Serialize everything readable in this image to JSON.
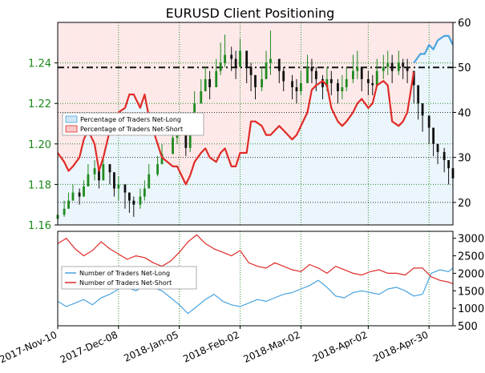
{
  "chart_data": {
    "title": "EURUSD Client Positioning",
    "x_dates": [
      "2017-Nov-10",
      "2017-Dec-08",
      "2018-Jan-05",
      "2018-Feb-02",
      "2018-Mar-02",
      "2018-Apr-02",
      "2018-Apr-30"
    ],
    "x_range": [
      "2017-11-10",
      "2018-05-11"
    ],
    "panels": [
      {
        "type": "candlestick+line",
        "left_axis": {
          "range": [
            1.16,
            1.26
          ],
          "ticks": [
            "1.16",
            "1.18",
            "1.20",
            "1.22",
            "1.24"
          ]
        },
        "right_axis": {
          "range": [
            15,
            60
          ],
          "ticks": [
            "20",
            "30",
            "40",
            "50",
            "60"
          ]
        },
        "reference_line_right": 50,
        "legend": {
          "placement": "left-middle",
          "entries": [
            "Percentage of Traders Net-Long",
            "Percentage of Traders Net-Short"
          ]
        },
        "series": [
          {
            "name": "Percentage of Traders Net-Short",
            "color": "#e02b27",
            "x": [
              "2017-11-10",
              "2017-11-13",
              "2017-11-15",
              "2017-11-17",
              "2017-11-20",
              "2017-11-22",
              "2017-11-24",
              "2017-11-27",
              "2017-11-29",
              "2017-12-01",
              "2017-12-04",
              "2017-12-06",
              "2017-12-08",
              "2017-12-11",
              "2017-12-13",
              "2017-12-15",
              "2017-12-18",
              "2017-12-20",
              "2017-12-22",
              "2017-12-26",
              "2017-12-28",
              "2018-01-02",
              "2018-01-04",
              "2018-01-08",
              "2018-01-10",
              "2018-01-12",
              "2018-01-15",
              "2018-01-17",
              "2018-01-19",
              "2018-01-22",
              "2018-01-24",
              "2018-01-26",
              "2018-01-29",
              "2018-01-31",
              "2018-02-02",
              "2018-02-05",
              "2018-02-07",
              "2018-02-09",
              "2018-02-12",
              "2018-02-14",
              "2018-02-16",
              "2018-02-20",
              "2018-02-22",
              "2018-02-26",
              "2018-02-28",
              "2018-03-02",
              "2018-03-05",
              "2018-03-07",
              "2018-03-09",
              "2018-03-12",
              "2018-03-14",
              "2018-03-16",
              "2018-03-19",
              "2018-03-21",
              "2018-03-23",
              "2018-03-26",
              "2018-03-28",
              "2018-03-30",
              "2018-04-02",
              "2018-04-04",
              "2018-04-06",
              "2018-04-09",
              "2018-04-11",
              "2018-04-13",
              "2018-04-16",
              "2018-04-18",
              "2018-04-20",
              "2018-04-23"
            ],
            "values": [
              31,
              29,
              27,
              28,
              30,
              34,
              36,
              33,
              27,
              30,
              36,
              38,
              40,
              41,
              44,
              44,
              41,
              44,
              39,
              33,
              30,
              28,
              28,
              24,
              26,
              29,
              31,
              32,
              30,
              29,
              31,
              32,
              28,
              28,
              31,
              31,
              38,
              38,
              37,
              35,
              35,
              37,
              36,
              34,
              35,
              37,
              40,
              45,
              46,
              47,
              46,
              41,
              38,
              37,
              38,
              40,
              42,
              43,
              41,
              42,
              46,
              47,
              46,
              38,
              37,
              38,
              40,
              49
            ]
          },
          {
            "name": "Percentage of Traders Net-Long",
            "color": "#4aa3df",
            "x": [
              "2018-04-23",
              "2018-04-26",
              "2018-04-28",
              "2018-04-30",
              "2018-05-02",
              "2018-05-04",
              "2018-05-07",
              "2018-05-09",
              "2018-05-11"
            ],
            "values": [
              51,
              53,
              53,
              55,
              54,
              56,
              57,
              57,
              55
            ]
          }
        ],
        "price_candles": {
          "x": [
            "2017-11-10",
            "2017-11-13",
            "2017-11-15",
            "2017-11-17",
            "2017-11-20",
            "2017-11-22",
            "2017-11-24",
            "2017-11-27",
            "2017-11-29",
            "2017-12-01",
            "2017-12-04",
            "2017-12-06",
            "2017-12-08",
            "2017-12-11",
            "2017-12-13",
            "2017-12-15",
            "2017-12-18",
            "2017-12-20",
            "2017-12-22",
            "2017-12-26",
            "2017-12-28",
            "2018-01-02",
            "2018-01-04",
            "2018-01-08",
            "2018-01-10",
            "2018-01-12",
            "2018-01-15",
            "2018-01-17",
            "2018-01-19",
            "2018-01-22",
            "2018-01-24",
            "2018-01-26",
            "2018-01-29",
            "2018-01-31",
            "2018-02-02",
            "2018-02-05",
            "2018-02-07",
            "2018-02-09",
            "2018-02-12",
            "2018-02-14",
            "2018-02-16",
            "2018-02-20",
            "2018-02-22",
            "2018-02-26",
            "2018-02-28",
            "2018-03-02",
            "2018-03-05",
            "2018-03-07",
            "2018-03-09",
            "2018-03-12",
            "2018-03-14",
            "2018-03-16",
            "2018-03-19",
            "2018-03-21",
            "2018-03-23",
            "2018-03-26",
            "2018-03-28",
            "2018-03-30",
            "2018-04-02",
            "2018-04-04",
            "2018-04-06",
            "2018-04-09",
            "2018-04-11",
            "2018-04-13",
            "2018-04-16",
            "2018-04-18",
            "2018-04-20",
            "2018-04-23",
            "2018-04-25",
            "2018-04-27",
            "2018-04-30",
            "2018-05-02",
            "2018-05-04",
            "2018-05-07",
            "2018-05-09",
            "2018-05-11"
          ],
          "close": [
            1.165,
            1.168,
            1.172,
            1.176,
            1.174,
            1.179,
            1.185,
            1.188,
            1.182,
            1.19,
            1.186,
            1.178,
            1.18,
            1.176,
            1.172,
            1.17,
            1.174,
            1.178,
            1.185,
            1.19,
            1.195,
            1.203,
            1.207,
            1.198,
            1.205,
            1.22,
            1.226,
            1.232,
            1.228,
            1.236,
            1.24,
            1.244,
            1.242,
            1.238,
            1.246,
            1.238,
            1.234,
            1.228,
            1.232,
            1.24,
            1.242,
            1.236,
            1.231,
            1.228,
            1.226,
            1.23,
            1.238,
            1.236,
            1.232,
            1.228,
            1.232,
            1.23,
            1.226,
            1.228,
            1.232,
            1.236,
            1.238,
            1.232,
            1.23,
            1.229,
            1.236,
            1.238,
            1.24,
            1.236,
            1.24,
            1.238,
            1.236,
            1.229,
            1.22,
            1.214,
            1.208,
            1.2,
            1.196,
            1.192,
            1.188,
            1.183
          ],
          "high": [
            1.168,
            1.172,
            1.176,
            1.18,
            1.178,
            1.182,
            1.19,
            1.192,
            1.188,
            1.194,
            1.19,
            1.184,
            1.184,
            1.18,
            1.176,
            1.174,
            1.178,
            1.182,
            1.19,
            1.194,
            1.2,
            1.208,
            1.212,
            1.206,
            1.21,
            1.226,
            1.232,
            1.238,
            1.236,
            1.242,
            1.25,
            1.254,
            1.248,
            1.246,
            1.252,
            1.246,
            1.24,
            1.234,
            1.238,
            1.246,
            1.256,
            1.242,
            1.238,
            1.234,
            1.232,
            1.236,
            1.244,
            1.242,
            1.238,
            1.234,
            1.238,
            1.236,
            1.232,
            1.234,
            1.238,
            1.244,
            1.246,
            1.238,
            1.236,
            1.234,
            1.242,
            1.244,
            1.246,
            1.244,
            1.246,
            1.242,
            1.242,
            1.236,
            1.226,
            1.22,
            1.214,
            1.206,
            1.2,
            1.198,
            1.192,
            1.188
          ],
          "low": [
            1.162,
            1.164,
            1.168,
            1.172,
            1.17,
            1.174,
            1.18,
            1.182,
            1.178,
            1.184,
            1.18,
            1.174,
            1.172,
            1.168,
            1.166,
            1.164,
            1.168,
            1.172,
            1.18,
            1.184,
            1.19,
            1.196,
            1.2,
            1.194,
            1.196,
            1.212,
            1.22,
            1.226,
            1.222,
            1.228,
            1.234,
            1.238,
            1.236,
            1.232,
            1.238,
            1.23,
            1.226,
            1.222,
            1.226,
            1.232,
            1.234,
            1.23,
            1.226,
            1.222,
            1.22,
            1.224,
            1.232,
            1.23,
            1.226,
            1.222,
            1.226,
            1.224,
            1.22,
            1.222,
            1.226,
            1.23,
            1.232,
            1.226,
            1.224,
            1.224,
            1.23,
            1.232,
            1.234,
            1.23,
            1.234,
            1.232,
            1.23,
            1.22,
            1.212,
            1.206,
            1.2,
            1.194,
            1.19,
            1.186,
            1.18,
            1.176
          ]
        }
      },
      {
        "type": "line",
        "right_axis": {
          "range": [
            500,
            3200
          ],
          "ticks": [
            "500",
            "1000",
            "1500",
            "2000",
            "2500",
            "3000"
          ]
        },
        "legend": {
          "placement": "left-middle",
          "entries": [
            "Number of Traders Net-Long",
            "Number of Traders Net-Short"
          ]
        },
        "series": [
          {
            "name": "Number of Traders Net-Long",
            "color": "#4aa3df",
            "x": [
              "2017-11-10",
              "2017-11-14",
              "2017-11-18",
              "2017-11-22",
              "2017-11-26",
              "2017-11-30",
              "2017-12-04",
              "2017-12-08",
              "2017-12-12",
              "2017-12-16",
              "2017-12-20",
              "2017-12-24",
              "2017-12-28",
              "2018-01-01",
              "2018-01-05",
              "2018-01-09",
              "2018-01-13",
              "2018-01-17",
              "2018-01-21",
              "2018-01-25",
              "2018-01-29",
              "2018-02-02",
              "2018-02-06",
              "2018-02-10",
              "2018-02-14",
              "2018-02-18",
              "2018-02-22",
              "2018-02-26",
              "2018-03-02",
              "2018-03-06",
              "2018-03-10",
              "2018-03-14",
              "2018-03-18",
              "2018-03-22",
              "2018-03-26",
              "2018-03-30",
              "2018-04-03",
              "2018-04-07",
              "2018-04-11",
              "2018-04-15",
              "2018-04-19",
              "2018-04-23",
              "2018-04-27",
              "2018-05-01",
              "2018-05-05",
              "2018-05-09",
              "2018-05-11"
            ],
            "values": [
              1200,
              1050,
              1150,
              1250,
              1100,
              1300,
              1400,
              1550,
              1600,
              1500,
              1650,
              1600,
              1500,
              1300,
              1100,
              850,
              1050,
              1250,
              1400,
              1200,
              1100,
              1050,
              1150,
              1250,
              1200,
              1300,
              1400,
              1450,
              1550,
              1650,
              1800,
              1600,
              1350,
              1300,
              1450,
              1500,
              1450,
              1400,
              1550,
              1600,
              1500,
              1350,
              1400,
              2000,
              2100,
              2050,
              2150
            ]
          },
          {
            "name": "Number of Traders Net-Short",
            "color": "#e02b27",
            "x": [
              "2017-11-10",
              "2017-11-14",
              "2017-11-18",
              "2017-11-22",
              "2017-11-26",
              "2017-11-30",
              "2017-12-04",
              "2017-12-08",
              "2017-12-12",
              "2017-12-16",
              "2017-12-20",
              "2017-12-24",
              "2017-12-28",
              "2018-01-01",
              "2018-01-05",
              "2018-01-09",
              "2018-01-13",
              "2018-01-17",
              "2018-01-21",
              "2018-01-25",
              "2018-01-29",
              "2018-02-02",
              "2018-02-06",
              "2018-02-10",
              "2018-02-14",
              "2018-02-18",
              "2018-02-22",
              "2018-02-26",
              "2018-03-02",
              "2018-03-06",
              "2018-03-10",
              "2018-03-14",
              "2018-03-18",
              "2018-03-22",
              "2018-03-26",
              "2018-03-30",
              "2018-04-03",
              "2018-04-07",
              "2018-04-11",
              "2018-04-15",
              "2018-04-19",
              "2018-04-23",
              "2018-04-27",
              "2018-05-01",
              "2018-05-05",
              "2018-05-09",
              "2018-05-11"
            ],
            "values": [
              2850,
              3000,
              2700,
              2500,
              2650,
              2900,
              2700,
              2550,
              2400,
              2500,
              2450,
              2300,
              2200,
              2350,
              2600,
              2900,
              3100,
              2850,
              2700,
              2600,
              2500,
              2650,
              2300,
              2200,
              2150,
              2300,
              2200,
              2100,
              2050,
              2250,
              2150,
              2000,
              2200,
              2100,
              2000,
              1950,
              2050,
              2100,
              2000,
              2000,
              1950,
              2150,
              2150,
              1900,
              1800,
              1750,
              1700
            ]
          }
        ]
      }
    ]
  }
}
